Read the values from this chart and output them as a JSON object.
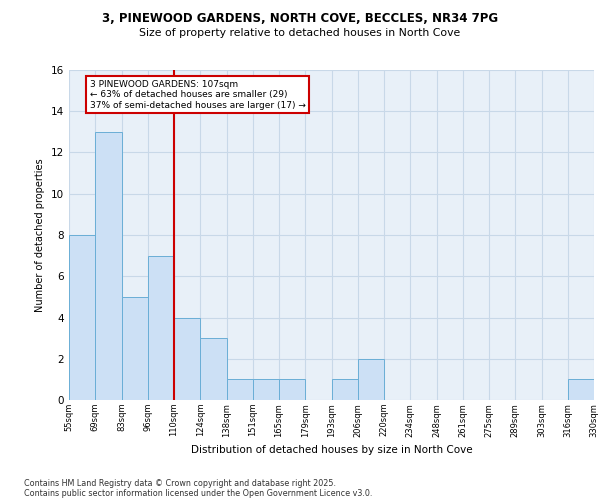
{
  "title1": "3, PINEWOOD GARDENS, NORTH COVE, BECCLES, NR34 7PG",
  "title2": "Size of property relative to detached houses in North Cove",
  "xlabel": "Distribution of detached houses by size in North Cove",
  "ylabel": "Number of detached properties",
  "bins": [
    "55sqm",
    "69sqm",
    "83sqm",
    "96sqm",
    "110sqm",
    "124sqm",
    "138sqm",
    "151sqm",
    "165sqm",
    "179sqm",
    "193sqm",
    "206sqm",
    "220sqm",
    "234sqm",
    "248sqm",
    "261sqm",
    "275sqm",
    "289sqm",
    "303sqm",
    "316sqm",
    "330sqm"
  ],
  "counts": [
    8,
    13,
    5,
    7,
    4,
    3,
    1,
    1,
    1,
    0,
    1,
    2,
    0,
    0,
    0,
    0,
    0,
    0,
    0,
    1
  ],
  "bar_color": "#cce0f5",
  "bar_edge_color": "#6aaed6",
  "redline_x": 4,
  "annotation_text": "3 PINEWOOD GARDENS: 107sqm\n← 63% of detached houses are smaller (29)\n37% of semi-detached houses are larger (17) →",
  "annotation_box_color": "white",
  "annotation_box_edge": "#cc0000",
  "redline_color": "#cc0000",
  "ylim": [
    0,
    16
  ],
  "yticks": [
    0,
    2,
    4,
    6,
    8,
    10,
    12,
    14,
    16
  ],
  "grid_color": "#c8d8e8",
  "bg_color": "#e8f0f8",
  "footer1": "Contains HM Land Registry data © Crown copyright and database right 2025.",
  "footer2": "Contains public sector information licensed under the Open Government Licence v3.0."
}
